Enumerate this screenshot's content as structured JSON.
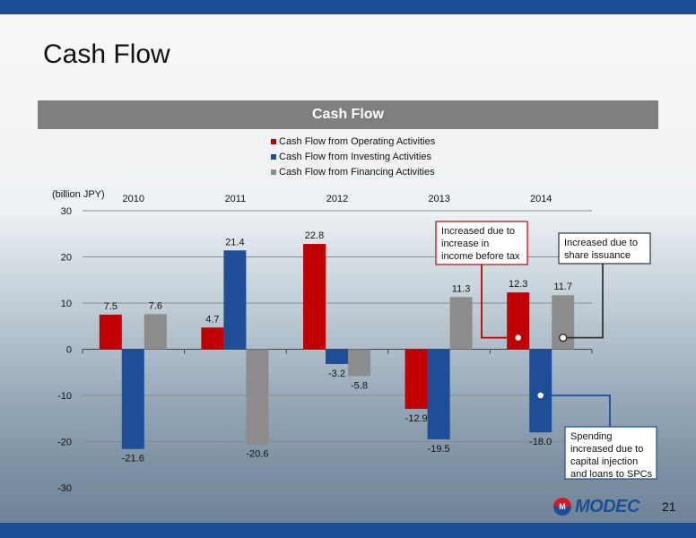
{
  "page": {
    "title": "Cash Flow",
    "page_number": "21",
    "logo_text": "MODEC",
    "logo_mark": "M"
  },
  "colors": {
    "operating": "#c00000",
    "investing": "#1f4e97",
    "financing": "#8c8c8c",
    "header_bg": "#7f7f7f",
    "brand": "#1a4f97"
  },
  "chart_data": {
    "type": "bar",
    "title": "Cash Flow",
    "ylabel": "(billion JPY)",
    "categories": [
      "2010",
      "2011",
      "2012",
      "2013",
      "2014"
    ],
    "ylim": [
      -30,
      30
    ],
    "yticks": [
      30,
      20,
      10,
      0,
      -10,
      -20,
      -30
    ],
    "grid": true,
    "legend_position": "top",
    "series": [
      {
        "name": "Cash Flow from Operating Activities",
        "values": [
          7.5,
          4.7,
          22.8,
          -12.9,
          12.3
        ]
      },
      {
        "name": "Cash Flow from Investing Activities",
        "values": [
          -21.6,
          21.4,
          -3.2,
          -19.5,
          -18.0
        ]
      },
      {
        "name": "Cash Flow from Financing Activities",
        "values": [
          7.6,
          -20.6,
          -5.8,
          11.3,
          11.7
        ]
      }
    ],
    "data_labels": [
      [
        "7.5",
        "4.7",
        "22.8",
        "-12.9",
        "12.3"
      ],
      [
        "-21.6",
        "21.4",
        "-3.2",
        "-19.5",
        "-18.0"
      ],
      [
        "7.6",
        "-20.6",
        "-5.8",
        "11.3",
        "11.7"
      ]
    ],
    "annotations": [
      {
        "text": [
          "Increased due to",
          "increase in",
          "income before tax"
        ],
        "category": "2014",
        "series": 0
      },
      {
        "text": [
          "Increased due to",
          "share issuance"
        ],
        "category": "2014",
        "series": 2
      },
      {
        "text": [
          "Spending",
          "increased  due to",
          "capital injection",
          "and loans to SPCs"
        ],
        "category": "2014",
        "series": 1
      }
    ]
  }
}
